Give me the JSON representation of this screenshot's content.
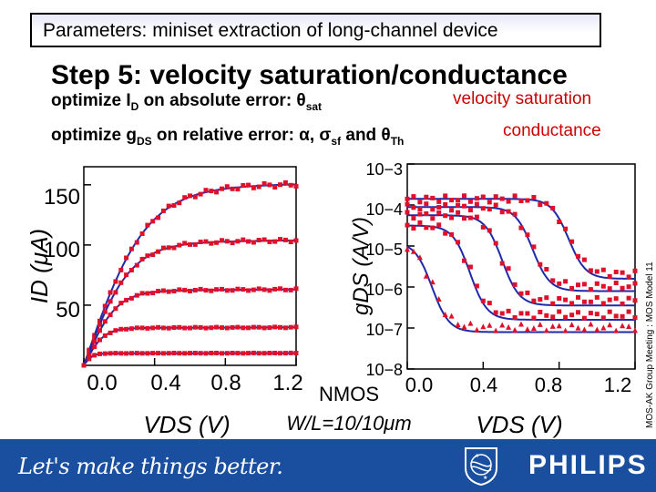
{
  "header": {
    "title": "Parameters: miniset extraction of long-channel device",
    "subtitle": "Step 5: velocity saturation/conductance",
    "line1": "optimize I",
    "line1_sub": "D",
    "line1_rest": " on absolute error: θ",
    "line1_sub2": "sat",
    "line1_tag": "velocity saturation",
    "line2": "optimize g",
    "line2_sub": "DS",
    "line2_rest": " on relative error: α, σ",
    "line2_sub2": "sf",
    "line2_rest2": " and θ",
    "line2_sub3": "Th",
    "line2_tag": "conductance",
    "side_note": "MOS-AK Group Meeting : MOS Model 11"
  },
  "device_label": {
    "line1": "NMOS",
    "line2": "W/L=10/10μm"
  },
  "footer": {
    "slogan": "Let's make things better.",
    "brand": "PHILIPS"
  },
  "colors": {
    "curve": "#1f2aa8",
    "marker": "#e0102a",
    "footer_bg": "#1a4fa0"
  },
  "chart_data": [
    {
      "type": "line",
      "title": "",
      "xlabel": "VDS (V)",
      "ylabel": "ID (μA)",
      "xlim": [
        0.0,
        1.2
      ],
      "ylim": [
        0,
        165
      ],
      "xticks": [
        "0.0",
        "0.4",
        "0.8",
        "1.2"
      ],
      "yticks": [
        "50",
        "100",
        "150"
      ],
      "series_style": "model line + measured markers",
      "series": [
        {
          "saturation": 148,
          "vdsat": 0.35
        },
        {
          "saturation": 102,
          "vdsat": 0.26
        },
        {
          "saturation": 62,
          "vdsat": 0.18
        },
        {
          "saturation": 31,
          "vdsat": 0.11
        },
        {
          "saturation": 10,
          "vdsat": 0.05
        }
      ]
    },
    {
      "type": "line",
      "title": "",
      "xlabel": "VDS (V)",
      "ylabel": "gDS (A/V)",
      "xlim": [
        0.0,
        1.2
      ],
      "ylim_log10": [
        -8,
        -3
      ],
      "yscale": "log",
      "xticks": [
        "0.0",
        "0.4",
        "0.8",
        "1.2"
      ],
      "yticks": [
        "10−3",
        "10−4",
        "10−5",
        "10−6",
        "10−7",
        "10−8"
      ],
      "series_style": "model line + measured markers",
      "series": [
        {
          "high_log": -3.85,
          "low_log": -5.8,
          "knee": 0.85
        },
        {
          "high_log": -4.05,
          "low_log": -6.1,
          "knee": 0.66
        },
        {
          "high_log": -4.25,
          "low_log": -6.45,
          "knee": 0.5
        },
        {
          "high_log": -4.5,
          "low_log": -6.8,
          "knee": 0.33
        },
        {
          "high_log": -4.9,
          "low_log": -7.1,
          "knee": 0.13
        }
      ]
    }
  ]
}
